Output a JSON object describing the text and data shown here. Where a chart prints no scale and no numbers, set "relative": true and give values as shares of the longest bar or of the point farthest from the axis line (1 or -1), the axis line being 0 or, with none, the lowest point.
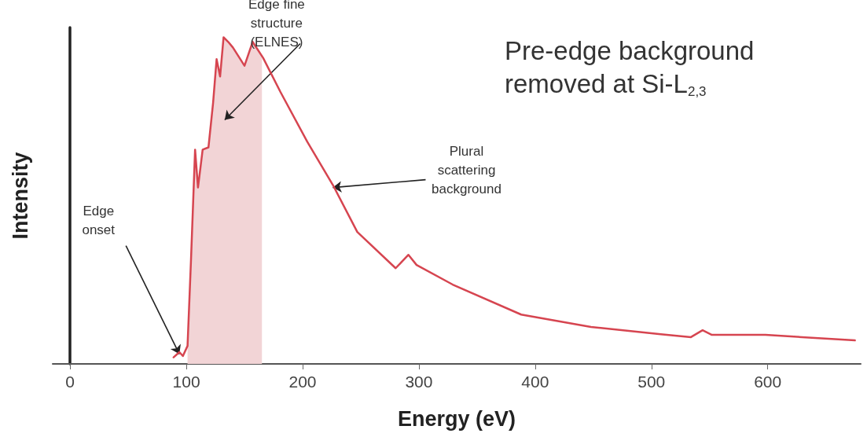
{
  "chart_data": {
    "type": "line",
    "title": "Pre-edge background removed at Si-L$_{2,3}$",
    "xlabel": "Energy (eV)",
    "ylabel": "Intensity",
    "relative": true,
    "xlim": [
      -15,
      680
    ],
    "xticks": [
      0,
      100,
      200,
      300,
      400,
      500,
      600
    ],
    "marker": "none",
    "series": [
      {
        "color": "#d64550",
        "x": [
          89,
          94,
          97,
          101,
          104,
          107.5,
          110,
          114,
          119,
          123,
          126,
          129,
          132,
          136,
          140,
          150,
          157,
          166,
          181,
          204,
          226,
          247,
          280,
          291,
          298,
          329,
          388,
          448,
          508,
          534,
          544,
          552,
          598,
          675
        ],
        "values": [
          0.02,
          0.036,
          0.024,
          0.055,
          0.32,
          0.656,
          0.54,
          0.656,
          0.663,
          0.8,
          0.933,
          0.88,
          1.0,
          0.986,
          0.969,
          0.913,
          0.986,
          0.937,
          0.832,
          0.68,
          0.548,
          0.404,
          0.293,
          0.334,
          0.303,
          0.243,
          0.151,
          0.113,
          0.091,
          0.082,
          0.103,
          0.089,
          0.089,
          0.072
        ]
      },
      {
        "type": "area",
        "color": "#f2d4d6",
        "x": [
          101,
          104,
          107.5,
          110,
          114,
          119,
          123,
          126,
          129,
          132,
          136,
          140,
          150,
          157,
          165
        ],
        "values": [
          0.055,
          0.32,
          0.656,
          0.54,
          0.656,
          0.663,
          0.8,
          0.933,
          0.88,
          1.0,
          0.986,
          0.969,
          0.913,
          0.986,
          0.94
        ]
      }
    ],
    "annotations": [
      {
        "text": "Edge\nonset",
        "x": 94,
        "y": 0.03
      },
      "Edge fine\nstructure\n(ELNES)",
      {
        "text": "Plural\nscattering\nbackground",
        "x": 226,
        "y": 0.54
      }
    ]
  }
}
